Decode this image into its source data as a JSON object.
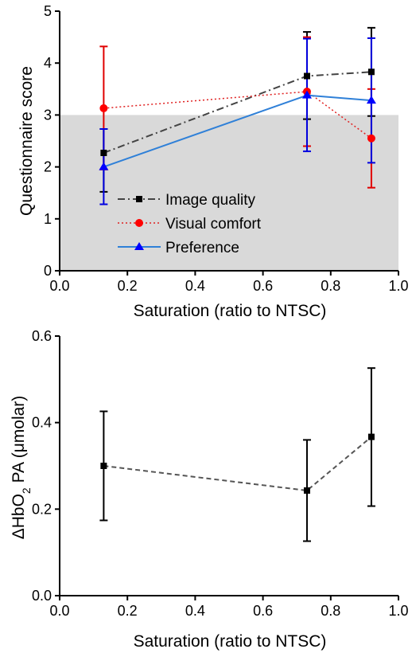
{
  "chart_data": [
    {
      "type": "line",
      "xlabel": "Saturation (ratio to NTSC)",
      "ylabel": "Questionnaire score",
      "xlim": [
        0.0,
        1.0
      ],
      "ylim": [
        0,
        5
      ],
      "xticks": [
        "0.0",
        "0.2",
        "0.4",
        "0.6",
        "0.8",
        "1.0"
      ],
      "yticks": [
        "0",
        "1",
        "2",
        "3",
        "4",
        "5"
      ],
      "shaded_region": {
        "y_from": 0,
        "y_to": 3,
        "color": "#d9d9d9"
      },
      "legend_position": "bottom-left",
      "x": [
        0.13,
        0.73,
        0.92
      ],
      "series": [
        {
          "name": "Image quality",
          "color": "#444444",
          "line_style": "dash-dot",
          "marker": "square",
          "values": [
            2.27,
            3.75,
            3.83
          ],
          "err_low": [
            1.52,
            2.92,
            2.98
          ],
          "err_high": [
            2.73,
            4.6,
            4.68
          ]
        },
        {
          "name": "Visual comfort",
          "color": "#e02020",
          "line_style": "dotted",
          "marker": "circle",
          "values": [
            3.13,
            3.45,
            2.55
          ],
          "err_low": [
            1.95,
            2.4,
            1.6
          ],
          "err_high": [
            4.32,
            4.5,
            3.5
          ]
        },
        {
          "name": "Preference",
          "color": "#2f80d8",
          "line_style": "solid",
          "marker": "triangle",
          "values": [
            2.0,
            3.38,
            3.28
          ],
          "err_low": [
            1.28,
            2.3,
            2.08
          ],
          "err_high": [
            2.73,
            4.47,
            4.48
          ]
        }
      ]
    },
    {
      "type": "line",
      "xlabel": "Saturation (ratio to NTSC)",
      "ylabel_parts": [
        "ΔHbO",
        "2",
        " PA (μmolar)"
      ],
      "xlim": [
        0.0,
        1.0
      ],
      "ylim": [
        0.0,
        0.6
      ],
      "xticks": [
        "0.0",
        "0.2",
        "0.4",
        "0.6",
        "0.8",
        "1.0"
      ],
      "yticks": [
        "0.0",
        "0.2",
        "0.4",
        "0.6"
      ],
      "x": [
        0.13,
        0.73,
        0.92
      ],
      "series": [
        {
          "color": "#555555",
          "line_style": "dashed",
          "marker": "square",
          "values": [
            0.3,
            0.243,
            0.367
          ],
          "err_low": [
            0.174,
            0.126,
            0.207
          ],
          "err_high": [
            0.426,
            0.36,
            0.526
          ]
        }
      ]
    }
  ]
}
